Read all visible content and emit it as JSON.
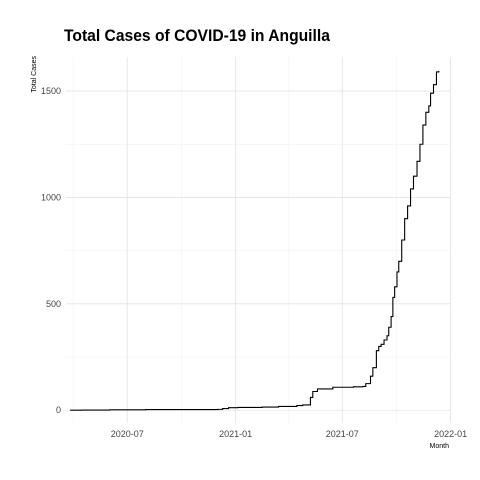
{
  "chart_data": {
    "type": "line",
    "title": "Total Cases of COVID-19 in Anguilla",
    "xlabel": "Month",
    "ylabel": "Total Cases",
    "x_ticks": [
      "2020-07",
      "2021-01",
      "2021-07",
      "2022-01"
    ],
    "y_ticks": [
      0,
      500,
      1000,
      1500
    ],
    "xlim": [
      "2020-03-19",
      "2021-12-31"
    ],
    "ylim": [
      -60,
      1660
    ],
    "grid": true,
    "series": [
      {
        "x": [
          "2020-03-26",
          "2020-04-15",
          "2020-06-01",
          "2020-08-01",
          "2020-10-01",
          "2020-12-01",
          "2020-12-10",
          "2020-12-20",
          "2021-01-05",
          "2021-02-15",
          "2021-03-15",
          "2021-04-15",
          "2021-04-25",
          "2021-05-05",
          "2021-05-08",
          "2021-05-12",
          "2021-05-20",
          "2021-06-15",
          "2021-07-01",
          "2021-07-20",
          "2021-08-05",
          "2021-08-10",
          "2021-08-18",
          "2021-08-22",
          "2021-08-28",
          "2021-09-01",
          "2021-09-05",
          "2021-09-10",
          "2021-09-15",
          "2021-09-18",
          "2021-09-22",
          "2021-09-25",
          "2021-09-28",
          "2021-10-02",
          "2021-10-05",
          "2021-10-10",
          "2021-10-15",
          "2021-10-20",
          "2021-10-25",
          "2021-10-30",
          "2021-11-05",
          "2021-11-10",
          "2021-11-15",
          "2021-11-20",
          "2021-11-25",
          "2021-11-28",
          "2021-12-03",
          "2021-12-08",
          "2021-12-12"
        ],
        "y": [
          0,
          1,
          2,
          3,
          3,
          4,
          8,
          12,
          13,
          15,
          18,
          22,
          25,
          25,
          60,
          88,
          100,
          108,
          108,
          110,
          112,
          125,
          160,
          200,
          280,
          300,
          310,
          330,
          350,
          390,
          440,
          530,
          580,
          650,
          700,
          800,
          900,
          960,
          1040,
          1100,
          1170,
          1250,
          1340,
          1400,
          1430,
          1490,
          1530,
          1590,
          1595
        ]
      }
    ]
  }
}
